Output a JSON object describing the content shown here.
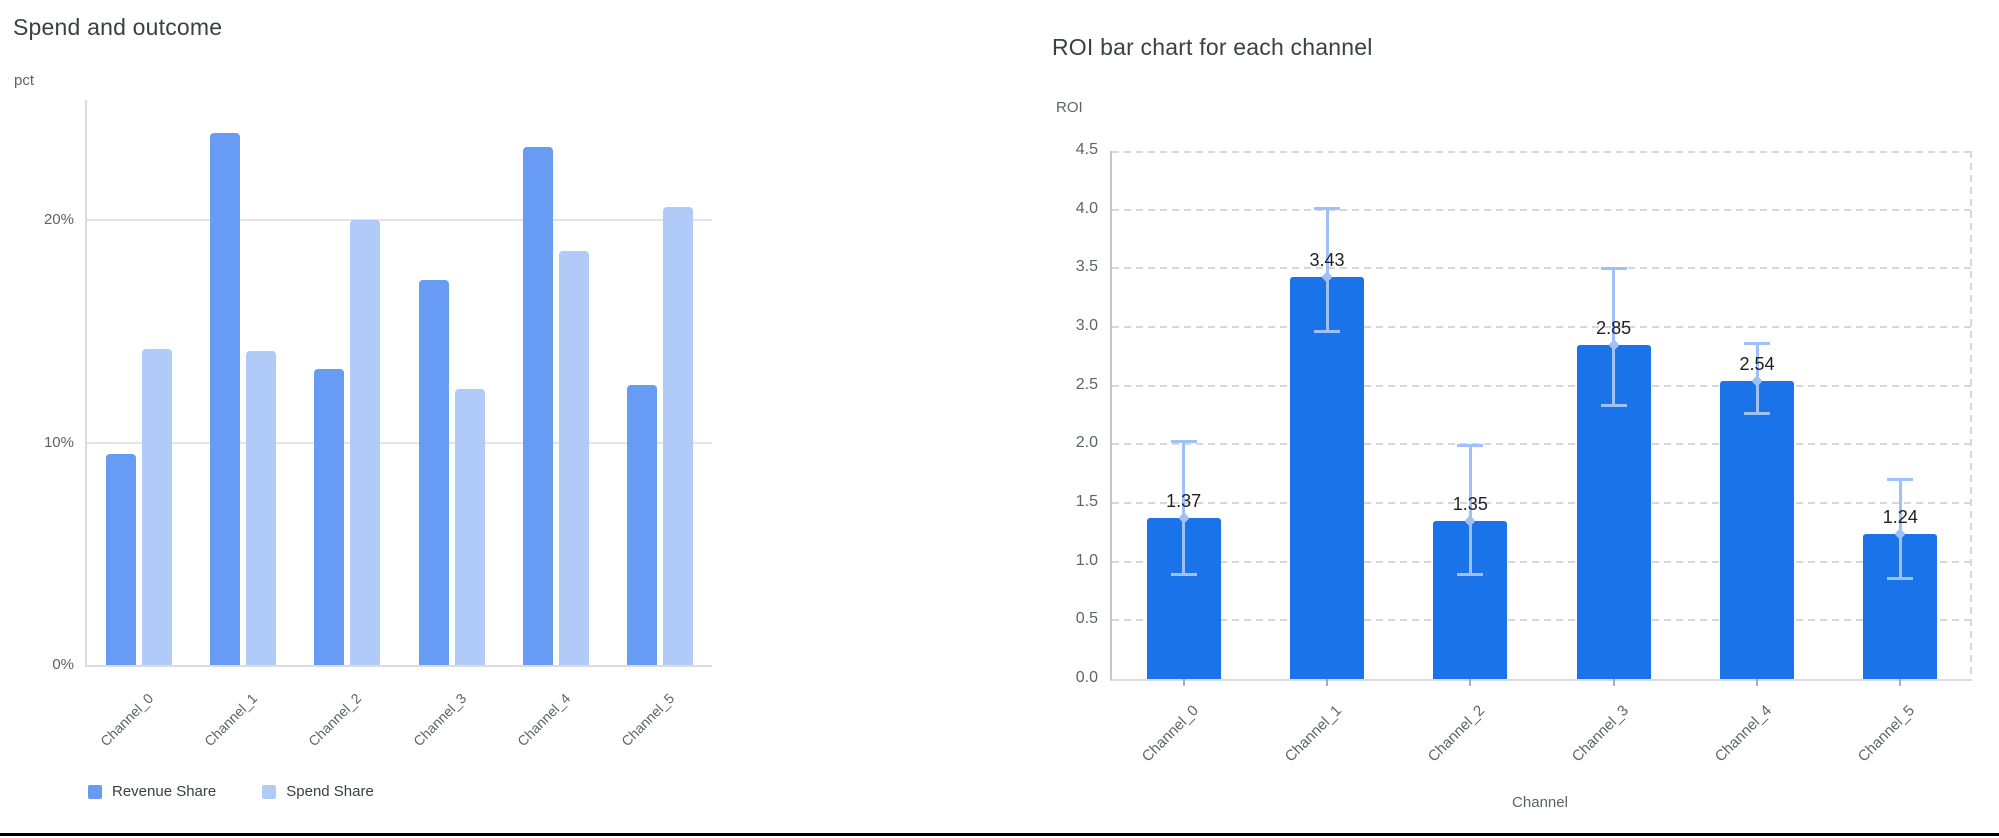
{
  "chart_data": [
    {
      "type": "bar",
      "title": "Spend and outcome",
      "ylabel": "pct",
      "xlabel": "",
      "categories": [
        "Channel_0",
        "Channel_1",
        "Channel_2",
        "Channel_3",
        "Channel_4",
        "Channel_5"
      ],
      "series": [
        {
          "name": "Revenue Share",
          "color": "#679bf4",
          "values": [
            9.5,
            23.9,
            13.3,
            17.3,
            23.3,
            12.6
          ]
        },
        {
          "name": "Spend Share",
          "color": "#b1cbf8",
          "values": [
            14.2,
            14.1,
            20.0,
            12.4,
            18.6,
            20.6
          ]
        }
      ],
      "y_ticks": [
        {
          "value": 0,
          "label": "0%"
        },
        {
          "value": 10,
          "label": "10%"
        },
        {
          "value": 20,
          "label": "20%"
        }
      ],
      "ylim": [
        0,
        25.4
      ],
      "grid": "solid-horizontal",
      "legend_position": "bottom"
    },
    {
      "type": "bar",
      "title": "ROI bar chart for each channel",
      "ylabel": "ROI",
      "xlabel": "Channel",
      "categories": [
        "Channel_0",
        "Channel_1",
        "Channel_2",
        "Channel_3",
        "Channel_4",
        "Channel_5"
      ],
      "values": [
        1.37,
        3.43,
        1.35,
        2.85,
        2.54,
        1.24
      ],
      "data_labels": [
        "1.37",
        "3.43",
        "1.35",
        "2.85",
        "2.54",
        "1.24"
      ],
      "error_low": [
        0.88,
        2.95,
        0.88,
        2.32,
        2.25,
        0.84
      ],
      "error_high": [
        2.04,
        4.02,
        2.0,
        3.51,
        2.87,
        1.71
      ],
      "bar_color": "#1a73e8",
      "error_color": "#9fc0f8",
      "y_ticks": [
        {
          "value": 0.0,
          "label": "0.0"
        },
        {
          "value": 0.5,
          "label": "0.5"
        },
        {
          "value": 1.0,
          "label": "1.0"
        },
        {
          "value": 1.5,
          "label": "1.5"
        },
        {
          "value": 2.0,
          "label": "2.0"
        },
        {
          "value": 2.5,
          "label": "2.5"
        },
        {
          "value": 3.0,
          "label": "3.0"
        },
        {
          "value": 3.5,
          "label": "3.5"
        },
        {
          "value": 4.0,
          "label": "4.0"
        },
        {
          "value": 4.5,
          "label": "4.5"
        }
      ],
      "ylim": [
        0,
        4.5
      ],
      "grid": "dashed-horizontal",
      "legend_position": "none"
    }
  ]
}
